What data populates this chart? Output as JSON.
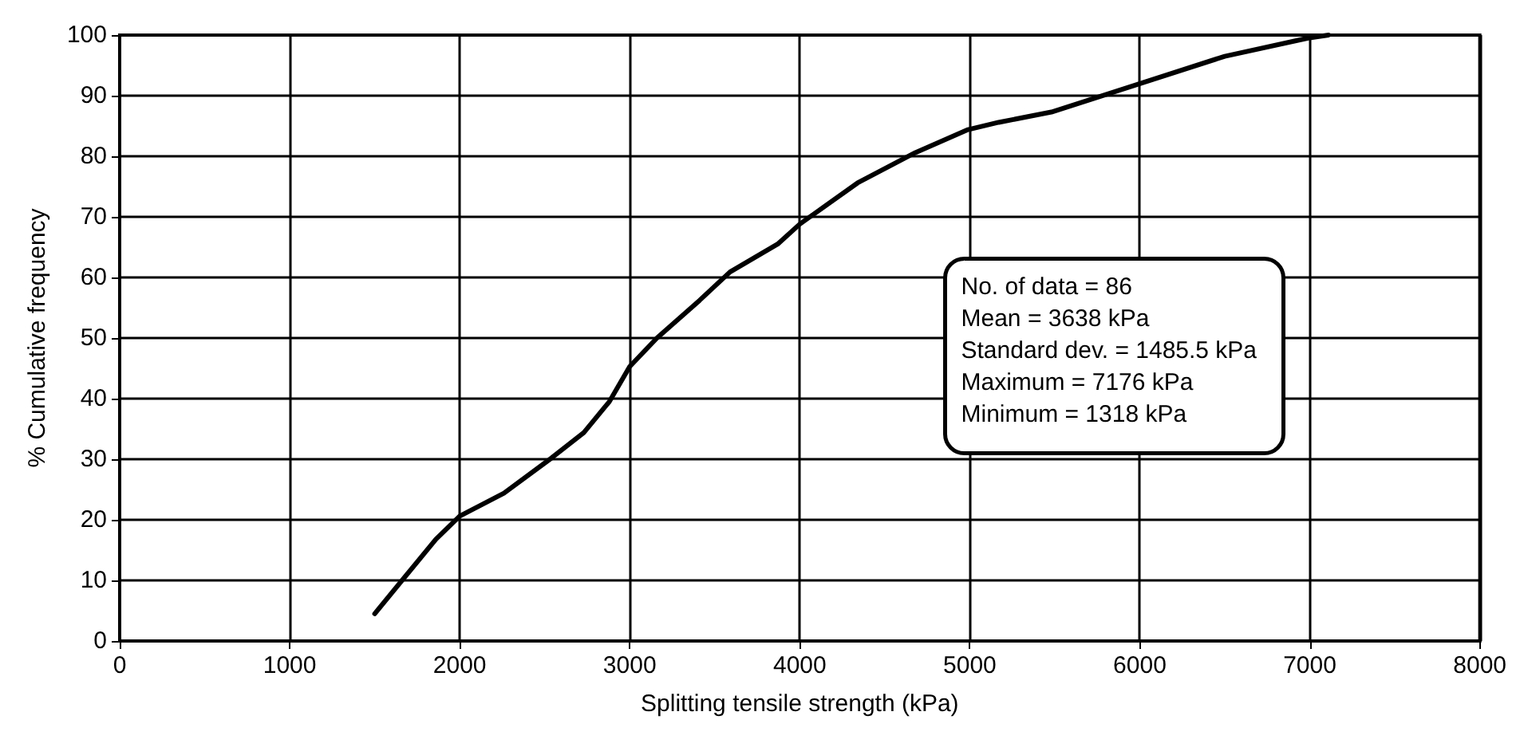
{
  "chart_data": {
    "type": "line",
    "xlabel": "Splitting tensile strength (kPa)",
    "ylabel": "% Cumulative frequency",
    "series": [
      {
        "color": "#000000",
        "x": [
          1500,
          1860,
          2000,
          2260,
          2540,
          2730,
          2880,
          3000,
          3160,
          3410,
          3590,
          3870,
          4000,
          4340,
          4680,
          4990,
          5170,
          5480,
          5990,
          6500,
          6990,
          7110
        ],
        "values": [
          4.5,
          16.8,
          20.6,
          24.4,
          30.2,
          34.4,
          39.5,
          45.3,
          50,
          56.2,
          60.9,
          65.5,
          68.8,
          75.6,
          80.6,
          84.4,
          85.6,
          87.3,
          91.9,
          96.5,
          99.5,
          100
        ]
      }
    ],
    "xlim": [
      0,
      8000
    ],
    "xticks": [
      0,
      1000,
      2000,
      3000,
      4000,
      5000,
      6000,
      7000,
      8000
    ],
    "ylim": [
      0,
      100
    ],
    "yticks": [
      0,
      10,
      20,
      30,
      40,
      50,
      60,
      70,
      80,
      90,
      100
    ],
    "grid": true,
    "marker": "none",
    "line_style": "solid",
    "annotations": [
      "No. of data = 86",
      "Mean = 3638 kPa",
      "Standard dev. = 1485.5 kPa",
      "Maximum = 7176 kPa",
      "Minimum = 1318 kPa"
    ]
  }
}
